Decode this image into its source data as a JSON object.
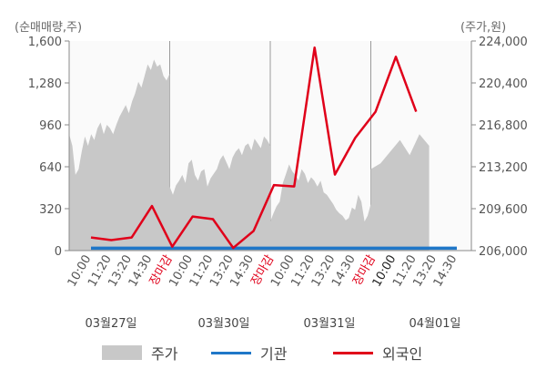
{
  "chart_data": {
    "type": "line",
    "left_axis_unit": "(순매매량,주)",
    "right_axis_unit": "(주가,원)",
    "left_ticks": [
      "0",
      "320",
      "640",
      "960",
      "1,280",
      "1,600"
    ],
    "right_ticks": [
      "206,000",
      "209,600",
      "213,200",
      "216,800",
      "220,400",
      "224,000"
    ],
    "left_ylim": [
      0,
      1600
    ],
    "right_ylim": [
      206000,
      224000
    ],
    "grid": true,
    "legend_position": "bottom",
    "x_ticks": [
      {
        "label": "10:00",
        "style": "normal"
      },
      {
        "label": "11:20",
        "style": "normal"
      },
      {
        "label": "13:20",
        "style": "normal"
      },
      {
        "label": "14:30",
        "style": "normal"
      },
      {
        "label": "장마감",
        "style": "red"
      },
      {
        "label": "10:00",
        "style": "normal"
      },
      {
        "label": "11:20",
        "style": "normal"
      },
      {
        "label": "13:20",
        "style": "normal"
      },
      {
        "label": "14:30",
        "style": "normal"
      },
      {
        "label": "장마감",
        "style": "red"
      },
      {
        "label": "10:00",
        "style": "normal"
      },
      {
        "label": "11:20",
        "style": "normal"
      },
      {
        "label": "13:20",
        "style": "normal"
      },
      {
        "label": "14:30",
        "style": "normal"
      },
      {
        "label": "장마감",
        "style": "red"
      },
      {
        "label": "10:00",
        "style": "bold"
      },
      {
        "label": "11:20",
        "style": "normal"
      },
      {
        "label": "13:20",
        "style": "normal"
      },
      {
        "label": "14:30",
        "style": "normal"
      }
    ],
    "date_labels": [
      "03월27일",
      "03월30일",
      "03월31일",
      "04월01일"
    ],
    "price_series": {
      "name": "주가",
      "color": "#c8c8c8",
      "segments": [
        [
          216000,
          215000,
          212500,
          213000,
          214500,
          215800,
          215000,
          216000,
          215500,
          216500,
          217000,
          216000,
          216800,
          216500,
          216000,
          216800,
          217500,
          218000,
          218500,
          217800,
          218800,
          219500,
          220500,
          220000,
          221000,
          222000,
          221500,
          222400,
          221800,
          222000,
          221000,
          220600,
          221200
        ],
        [
          211500,
          210800,
          211600,
          212000,
          212500,
          211800,
          213500,
          213800,
          212500,
          212000,
          212800,
          213000,
          211500,
          212200,
          212600,
          213000,
          213800,
          214200,
          213600,
          213000,
          214000,
          214500,
          214800,
          214200,
          215000,
          215200,
          214600,
          215600,
          215200,
          214800,
          215800,
          215500,
          215000
        ],
        [
          208500,
          209200,
          209800,
          210200,
          211800,
          212600,
          213400,
          212800,
          212500,
          212000,
          213000,
          212600,
          211800,
          212300,
          212000,
          211500,
          212000,
          211000,
          210800,
          210400,
          210000,
          209500,
          209200,
          209000,
          208600,
          208800,
          209700,
          209500,
          210800,
          210200,
          208500,
          209000,
          210000
        ],
        [
          213000,
          213500,
          214500,
          215500,
          214200,
          216000,
          215000
        ]
      ]
    },
    "series": [
      {
        "name": "기관",
        "color": "#1f77c8",
        "values": [
          18,
          18,
          18,
          18,
          18,
          18,
          18,
          18,
          18,
          18,
          18,
          18,
          18,
          18,
          18,
          18,
          18,
          18,
          18
        ]
      },
      {
        "name": "외국인",
        "color": "#e0001a",
        "values": [
          100,
          80,
          100,
          340,
          30,
          260,
          240,
          20,
          150,
          500,
          490,
          1550,
          580,
          860,
          1060,
          1480,
          1060
        ]
      }
    ]
  },
  "legend": {
    "price": "주가",
    "institution": "기관",
    "foreign": "외국인"
  }
}
